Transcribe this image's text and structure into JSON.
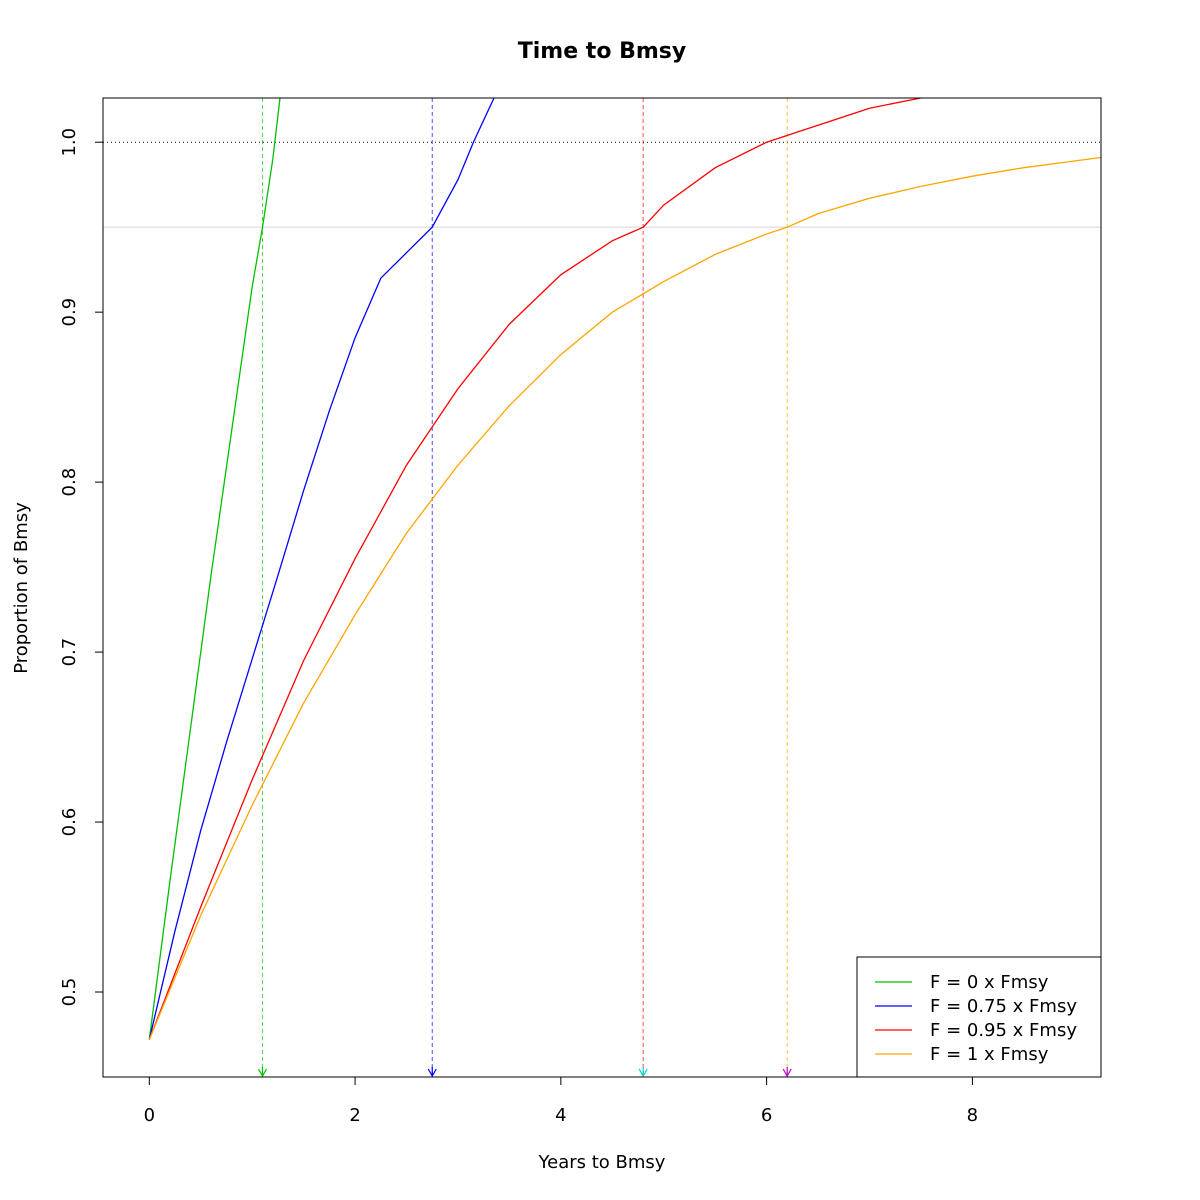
{
  "chart_data": {
    "type": "line",
    "title": "Time to Bmsy",
    "xlabel": "Years to Bmsy",
    "ylabel": "Proportion of Bmsy",
    "xlim": [
      -0.45,
      9.25
    ],
    "ylim": [
      0.45,
      1.026
    ],
    "x_ticks": [
      "0",
      "2",
      "4",
      "6",
      "8"
    ],
    "y_ticks": [
      "0.5",
      "0.6",
      "0.7",
      "0.8",
      "0.9",
      "1.0"
    ],
    "grid": false,
    "legend_position": "bottom-right",
    "reference_lines": [
      {
        "y": 1.0,
        "style": "dotted",
        "color": "#000000"
      },
      {
        "y": 0.95,
        "style": "solid",
        "color": "#d3d3d3"
      }
    ],
    "series": [
      {
        "name": "F = 0 x Fmsy",
        "color": "#00c000",
        "x": [
          0,
          0.2,
          0.4,
          0.6,
          0.8,
          1.0,
          1.1,
          1.2,
          1.27
        ],
        "y": [
          0.472,
          0.565,
          0.655,
          0.745,
          0.83,
          0.915,
          0.95,
          0.99,
          1.026
        ],
        "time_to_95": 1.1
      },
      {
        "name": "F = 0.75 x Fmsy",
        "color": "#0000ff",
        "x": [
          0,
          0.25,
          0.5,
          0.75,
          1.0,
          1.25,
          1.5,
          1.75,
          2.0,
          2.25,
          2.5,
          2.75,
          3.0,
          3.15,
          3.35
        ],
        "y": [
          0.472,
          0.536,
          0.595,
          0.647,
          0.696,
          0.745,
          0.795,
          0.842,
          0.885,
          0.92,
          0.935,
          0.95,
          0.978,
          1.0,
          1.026
        ],
        "time_to_95": 2.75
      },
      {
        "name": "F = 0.95 x Fmsy",
        "color": "#ff0000",
        "x": [
          0,
          0.5,
          1.0,
          1.5,
          2.0,
          2.5,
          3.0,
          3.5,
          4.0,
          4.5,
          4.8,
          5.0,
          5.5,
          6.0,
          6.5,
          7.0,
          7.5
        ],
        "y": [
          0.472,
          0.55,
          0.625,
          0.695,
          0.755,
          0.81,
          0.855,
          0.893,
          0.922,
          0.942,
          0.95,
          0.963,
          0.985,
          1.0,
          1.01,
          1.02,
          1.026
        ],
        "time_to_95": 4.8
      },
      {
        "name": "F = 1 x Fmsy",
        "color": "#ffa500",
        "x": [
          0,
          0.5,
          1.0,
          1.5,
          2.0,
          2.5,
          3.0,
          3.5,
          4.0,
          4.5,
          5.0,
          5.5,
          6.0,
          6.2,
          6.5,
          7.0,
          7.5,
          8.0,
          8.5,
          9.0,
          9.25
        ],
        "y": [
          0.472,
          0.545,
          0.61,
          0.67,
          0.722,
          0.77,
          0.81,
          0.845,
          0.875,
          0.9,
          0.918,
          0.934,
          0.946,
          0.95,
          0.958,
          0.967,
          0.974,
          0.98,
          0.985,
          0.989,
          0.991
        ],
        "time_to_95": 6.2
      }
    ],
    "markers": [
      {
        "x": 1.1,
        "color": "#00c000"
      },
      {
        "x": 2.75,
        "color": "#0000ff"
      },
      {
        "x": 4.8,
        "color": "#00d0d0"
      },
      {
        "x": 6.2,
        "color": "#c000c0"
      }
    ]
  }
}
